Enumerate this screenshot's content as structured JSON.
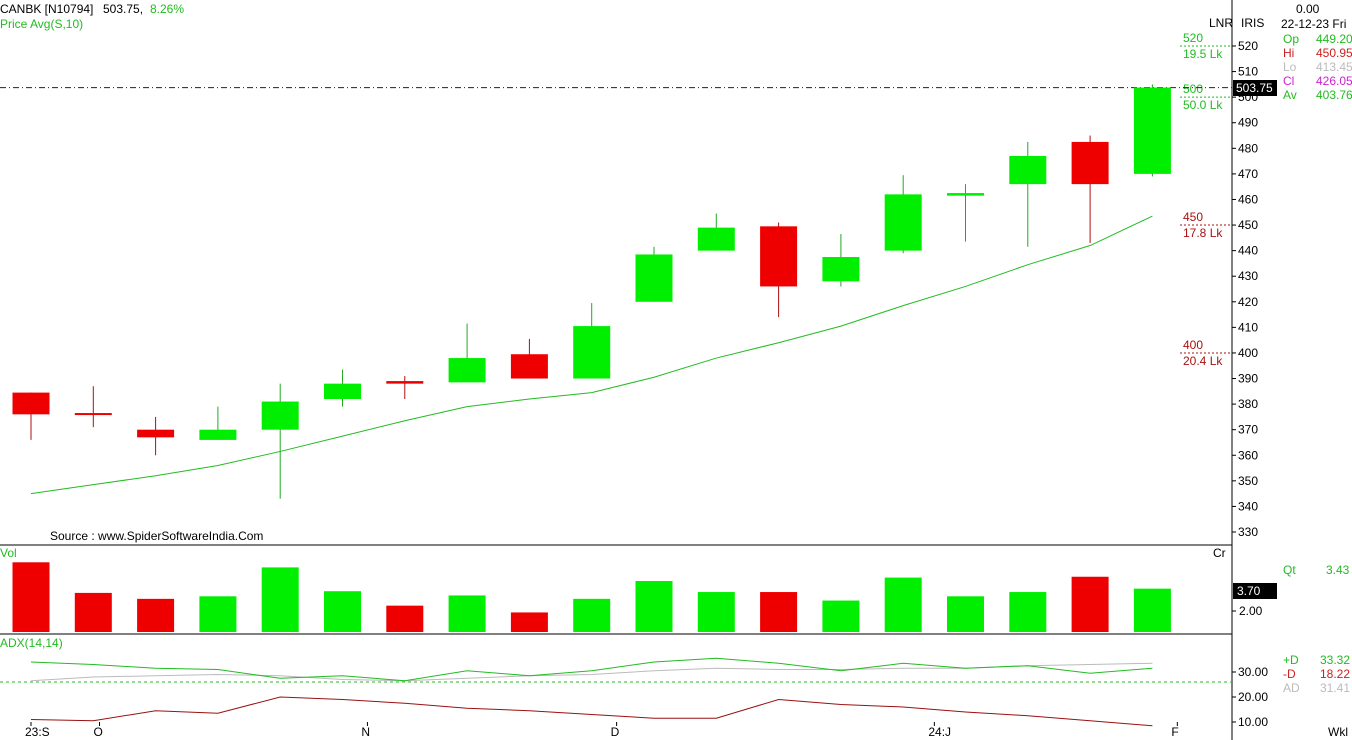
{
  "header": {
    "symbol": "CANBK [N10794]",
    "price": "503.75,",
    "change": "8.26%",
    "indicator": "Price Avg(S,10)",
    "mode": "LNR",
    "scheme": "IRIS",
    "top_value": "0.00"
  },
  "info_panel": {
    "date": "22-12-23 Fri",
    "rows": [
      {
        "label": "Op",
        "value": "449.20",
        "color": "#22bb22"
      },
      {
        "label": "Hi",
        "value": "450.95",
        "color": "#cc2222"
      },
      {
        "label": "Lo",
        "value": "413.45",
        "color": "#bbbbbb"
      },
      {
        "label": "Cl",
        "value": "426.05",
        "color": "#cc22cc"
      },
      {
        "label": "Av",
        "value": "403.76",
        "color": "#22bb22"
      }
    ]
  },
  "price_badge": "503.75",
  "source": "Source : www.SpiderSoftwareIndia.Com",
  "levels": [
    {
      "price": 520,
      "label": "520",
      "sub": "19.5 Lk",
      "color": "#22bb22"
    },
    {
      "price": 500,
      "label": "500",
      "sub": "50.0 Lk",
      "color": "#22bb22"
    },
    {
      "price": 450,
      "label": "450",
      "sub": "17.8 Lk",
      "color": "#aa1111"
    },
    {
      "price": 400,
      "label": "400",
      "sub": "20.4 Lk",
      "color": "#aa1111"
    }
  ],
  "volume_panel": {
    "label": "Vol",
    "unit": "Cr",
    "qt_label": "Qt",
    "qt_value": "3.43",
    "badge": "3.70",
    "tick": "2.00"
  },
  "adx_panel": {
    "label": "ADX(14,14)",
    "ticks": [
      "30.00",
      "20.00",
      "10.00"
    ],
    "legend": [
      {
        "label": "+D",
        "value": "33.32",
        "color": "#22bb22"
      },
      {
        "label": "-D",
        "value": "18.22",
        "color": "#cc2222"
      },
      {
        "label": "AD",
        "value": "31.41",
        "color": "#bbbbbb"
      }
    ]
  },
  "x_labels": [
    "23:S",
    "O",
    "N",
    "D",
    "24:J",
    "F"
  ],
  "period": "Wkl",
  "chart_data": {
    "type": "candlestick",
    "ylim": [
      325,
      530
    ],
    "y_ticks": [
      330,
      340,
      350,
      360,
      370,
      380,
      390,
      400,
      410,
      420,
      430,
      440,
      450,
      460,
      470,
      480,
      490,
      500,
      510,
      520
    ],
    "last_close_line": 503.75,
    "candles": [
      {
        "o": 384.5,
        "h": 384.5,
        "l": 366,
        "c": 376,
        "dir": "down"
      },
      {
        "o": 376.5,
        "h": 387,
        "l": 371,
        "c": 376,
        "dir": "down"
      },
      {
        "o": 370,
        "h": 375,
        "l": 360,
        "c": 367,
        "dir": "down"
      },
      {
        "o": 366,
        "h": 379,
        "l": 366,
        "c": 370,
        "dir": "up"
      },
      {
        "o": 370,
        "h": 388,
        "l": 343,
        "c": 381,
        "dir": "up"
      },
      {
        "o": 382,
        "h": 393.5,
        "l": 379,
        "c": 388,
        "dir": "up"
      },
      {
        "o": 389,
        "h": 391,
        "l": 382,
        "c": 388,
        "dir": "down"
      },
      {
        "o": 388.5,
        "h": 411.5,
        "l": 388.5,
        "c": 398,
        "dir": "up"
      },
      {
        "o": 399.5,
        "h": 405.5,
        "l": 390,
        "c": 390,
        "dir": "down"
      },
      {
        "o": 390,
        "h": 419.5,
        "l": 390,
        "c": 410.5,
        "dir": "up"
      },
      {
        "o": 420,
        "h": 441.5,
        "l": 420,
        "c": 438.5,
        "dir": "up"
      },
      {
        "o": 440,
        "h": 454.5,
        "l": 440,
        "c": 449,
        "dir": "up"
      },
      {
        "o": 449.5,
        "h": 451,
        "l": 414,
        "c": 426,
        "dir": "down"
      },
      {
        "o": 428,
        "h": 446.5,
        "l": 426,
        "c": 437.5,
        "dir": "up"
      },
      {
        "o": 440,
        "h": 469.5,
        "l": 439,
        "c": 462,
        "dir": "up"
      },
      {
        "o": 461.5,
        "h": 466,
        "l": 443.5,
        "c": 462.5,
        "dir": "up"
      },
      {
        "o": 466,
        "h": 482.5,
        "l": 441.5,
        "c": 477,
        "dir": "up"
      },
      {
        "o": 482.5,
        "h": 485,
        "l": 443,
        "c": 466,
        "dir": "down"
      },
      {
        "o": 470,
        "h": 505,
        "l": 469,
        "c": 503.75,
        "dir": "up"
      }
    ],
    "moving_average": {
      "name": "Price Avg(S,10)",
      "values": [
        345,
        348.5,
        352,
        356,
        361.5,
        367.5,
        373.5,
        379,
        382,
        384.5,
        390.5,
        398,
        404,
        410.5,
        418.5,
        426,
        434.5,
        442,
        453.5
      ]
    },
    "volume": {
      "ylim": [
        0,
        5
      ],
      "values": [
        4.1,
        2.3,
        1.95,
        2.1,
        3.8,
        2.4,
        1.55,
        2.15,
        1.15,
        1.95,
        3.0,
        2.35,
        2.35,
        1.85,
        3.2,
        2.1,
        2.35,
        3.25,
        2.55
      ]
    },
    "adx": {
      "ylim": [
        8,
        44
      ],
      "plus_di": [
        34,
        33,
        31.5,
        31,
        27.5,
        28.5,
        26.5,
        30.5,
        28.5,
        30.5,
        34,
        35.5,
        33.5,
        30.5,
        33.5,
        31.5,
        32.5,
        29.5,
        31.5
      ],
      "minus_di": [
        11,
        10.5,
        14.5,
        13.5,
        20,
        19,
        17.5,
        15.5,
        14.5,
        13,
        11.5,
        11.5,
        19,
        17,
        16,
        14,
        12.5,
        10.5,
        8.5
      ],
      "adx": [
        26.5,
        28,
        28.5,
        29,
        28.5,
        27,
        26.5,
        27.5,
        28.5,
        29,
        30.5,
        31.5,
        31,
        31,
        31.5,
        31.5,
        32.5,
        33,
        33.5
      ],
      "reference_line": 26
    }
  }
}
